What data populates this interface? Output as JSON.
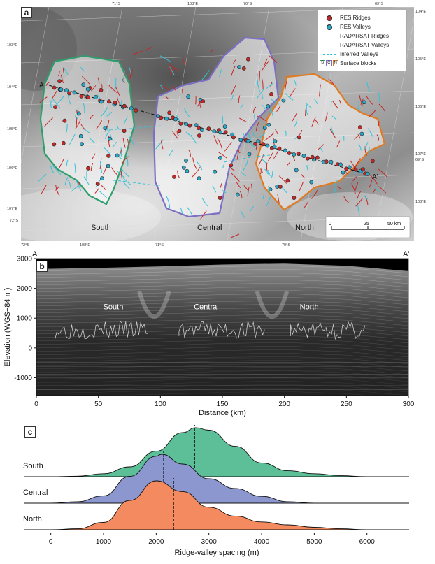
{
  "panel_a": {
    "label": "a",
    "top_lat_labels": [
      "71°S",
      "103°E",
      "70°S",
      "69°S"
    ],
    "bottom_lat_labels": [
      "72°S",
      "108°E",
      "71°S",
      "70°S"
    ],
    "left_labels": [
      "103°E",
      "104°E",
      "105°E",
      "106°E",
      "107°E",
      "72°S"
    ],
    "right_labels": [
      "104°E",
      "105°E",
      "106°E",
      "107°E",
      "69°S",
      "108°E"
    ],
    "legend": [
      {
        "label": "RES Ridges",
        "kind": "dot",
        "color": "#c62828"
      },
      {
        "label": "RES Valleys",
        "kind": "dot",
        "color": "#29a8c8"
      },
      {
        "label": "RADARSAT Ridges",
        "kind": "line",
        "color": "#c62828"
      },
      {
        "label": "RADARSAT Valleys",
        "kind": "line",
        "color": "#33c3d8"
      },
      {
        "label": "Inferred Valleys",
        "kind": "dash",
        "color": "#33c3d8"
      },
      {
        "label": "Surface blocks",
        "kind": "blocks",
        "letters": [
          "S",
          "C",
          "N"
        ],
        "colors": [
          "#2e9e6e",
          "#7a6fc2",
          "#e07a20"
        ]
      }
    ],
    "region_labels": [
      "South",
      "Central",
      "North"
    ],
    "profile_start": "A",
    "profile_end": "A'",
    "scale_ticks": [
      "0",
      "25",
      "50 km"
    ]
  },
  "panel_b": {
    "label": "b",
    "left_letter": "A",
    "right_letter": "A'",
    "region_labels": [
      "South",
      "Central",
      "North"
    ],
    "ylabel": "Elevation (WGS−84 m)",
    "xlabel": "Distance (km)"
  },
  "panel_c": {
    "label": "c",
    "xlabel": "Ridge-valley spacing (m)"
  },
  "chart_data": [
    {
      "type": "area",
      "title": "",
      "xlabel": "Distance (km)",
      "ylabel": "Elevation (WGS−84 m)",
      "xlim": [
        0,
        300
      ],
      "ylim": [
        -1600,
        3000
      ],
      "xticks": [
        0,
        50,
        100,
        150,
        200,
        250,
        300
      ],
      "yticks": [
        3000,
        2000,
        1000,
        0,
        -1000
      ],
      "surface": {
        "x": [
          0,
          50,
          100,
          150,
          200,
          250,
          300
        ],
        "y": [
          2650,
          2690,
          2740,
          2800,
          2830,
          2760,
          2580
        ]
      }
    },
    {
      "type": "area",
      "title": "",
      "xlabel": "Ridge-valley spacing (m)",
      "xlim": [
        -500,
        6800
      ],
      "xticks": [
        0,
        1000,
        2000,
        3000,
        4000,
        5000,
        6000
      ],
      "legend": "none",
      "series": [
        {
          "name": "South",
          "color": "#5dbf98",
          "mean": 2730,
          "x": [
            -500,
            0,
            500,
            1000,
            1500,
            2000,
            2500,
            2750,
            3000,
            3500,
            4000,
            4500,
            5000,
            5500,
            6000,
            6800
          ],
          "y": [
            0,
            0,
            0.01,
            0.06,
            0.2,
            0.52,
            0.9,
            1.0,
            0.95,
            0.62,
            0.28,
            0.12,
            0.06,
            0.02,
            0.0,
            0
          ]
        },
        {
          "name": "Central",
          "color": "#8c97cf",
          "mean": 2140,
          "x": [
            -500,
            0,
            500,
            1000,
            1500,
            2000,
            2100,
            2500,
            3000,
            3500,
            4000,
            4500,
            5000,
            6800
          ],
          "y": [
            0,
            0,
            0.03,
            0.15,
            0.55,
            0.96,
            1.0,
            0.8,
            0.5,
            0.3,
            0.14,
            0.03,
            0,
            0
          ]
        },
        {
          "name": "North",
          "color": "#f48a5f",
          "mean": 2330,
          "x": [
            -500,
            0,
            500,
            1000,
            1500,
            2000,
            2500,
            3000,
            3500,
            4000,
            4500,
            5000,
            5500,
            6000,
            6800
          ],
          "y": [
            0,
            0,
            0.02,
            0.15,
            0.6,
            1.0,
            0.78,
            0.46,
            0.28,
            0.16,
            0.1,
            0.05,
            0.02,
            0,
            0
          ]
        }
      ]
    }
  ]
}
